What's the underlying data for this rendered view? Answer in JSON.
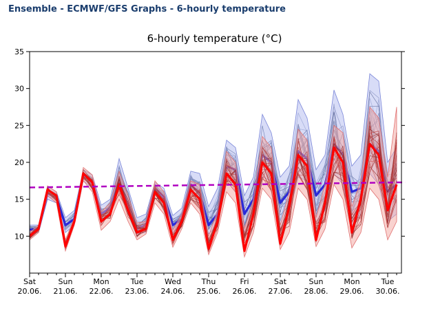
{
  "header": {
    "title": "Ensemble - ECMWF/GFS Graphs - 6-hourly temperature"
  },
  "chart_data": {
    "type": "line",
    "title": "6-hourly temperature (°C)",
    "xlabel": "",
    "ylabel": "",
    "ylim": [
      5,
      35
    ],
    "y_ticks": [
      10,
      15,
      20,
      25,
      30,
      35
    ],
    "x_tick_labels": [
      {
        "day": "Sat",
        "date": "20.06."
      },
      {
        "day": "Sun",
        "date": "21.06."
      },
      {
        "day": "Mon",
        "date": "22.06."
      },
      {
        "day": "Tue",
        "date": "23.06."
      },
      {
        "day": "Wed",
        "date": "24.06."
      },
      {
        "day": "Thu",
        "date": "25.06."
      },
      {
        "day": "Fri",
        "date": "26.06."
      },
      {
        "day": "Sat",
        "date": "27.06."
      },
      {
        "day": "Sun",
        "date": "28.06."
      },
      {
        "day": "Mon",
        "date": "29.06."
      },
      {
        "day": "Tue",
        "date": "30.06."
      }
    ],
    "x_unit": "days from 20.06.",
    "series": [
      {
        "model": "GFS",
        "color": "#2a2ad8",
        "x": [
          0,
          0.25,
          0.5,
          0.75,
          1,
          1.25,
          1.5,
          1.75,
          2,
          2.25,
          2.5,
          2.75,
          3,
          3.25,
          3.5,
          3.75,
          4,
          4.25,
          4.5,
          4.75,
          5,
          5.25,
          5.5,
          5.75,
          6,
          6.25,
          6.5,
          6.75,
          7,
          7.25,
          7.5,
          7.75,
          8,
          8.25,
          8.5,
          8.75,
          9,
          9.25,
          9.5,
          9.75,
          10,
          10.25
        ],
        "values": [
          10.9,
          10.9,
          15.8,
          15.2,
          11.5,
          12.3,
          18.3,
          17.3,
          13.0,
          13.8,
          17.5,
          14.2,
          11.0,
          11.5,
          16.5,
          15.3,
          11.5,
          12.3,
          17.0,
          15.8,
          11.5,
          13.0,
          19.5,
          19.0,
          13.0,
          15.0,
          21.0,
          20.0,
          14.5,
          16.0,
          21.5,
          20.5,
          15.5,
          17.0,
          22.5,
          21.0,
          16.0,
          16.5,
          22.5,
          21.5,
          16.0,
          17.0
        ],
        "min": [
          10.5,
          10.5,
          15.0,
          14.5,
          10.5,
          11.5,
          17.5,
          16.5,
          12.0,
          12.8,
          16.5,
          13.0,
          10.3,
          10.5,
          15.8,
          14.5,
          10.5,
          11.5,
          16.0,
          14.5,
          10.3,
          11.5,
          17.5,
          17.0,
          10.5,
          12.5,
          18.0,
          17.5,
          11.0,
          13.0,
          18.0,
          17.5,
          11.5,
          13.5,
          18.5,
          17.0,
          11.5,
          13.0,
          18.5,
          17.0,
          12.0,
          13.0
        ],
        "max": [
          11.5,
          11.5,
          16.8,
          16.0,
          12.5,
          13.5,
          19.0,
          18.3,
          14.2,
          15.0,
          20.5,
          16.5,
          12.5,
          13.0,
          17.3,
          16.5,
          12.8,
          13.8,
          18.8,
          18.5,
          14.0,
          16.5,
          23.0,
          22.0,
          15.5,
          18.0,
          26.5,
          24.0,
          18.0,
          19.5,
          28.5,
          26.0,
          19.0,
          21.0,
          29.8,
          26.5,
          19.5,
          21.0,
          32.0,
          31.0,
          20.0,
          22.0
        ]
      },
      {
        "model": "ECMWF",
        "color": "#ff0000",
        "x": [
          0,
          0.25,
          0.5,
          0.75,
          1,
          1.25,
          1.5,
          1.75,
          2,
          2.25,
          2.5,
          2.75,
          3,
          3.25,
          3.5,
          3.75,
          4,
          4.25,
          4.5,
          4.75,
          5,
          5.25,
          5.5,
          5.75,
          6,
          6.25,
          6.5,
          6.75,
          7,
          7.25,
          7.5,
          7.75,
          8,
          8.25,
          8.5,
          8.75,
          9,
          9.25,
          9.5,
          9.75,
          10,
          10.25
        ],
        "values": [
          10.0,
          11.0,
          16.3,
          15.5,
          8.6,
          12.0,
          18.5,
          17.3,
          12.0,
          13.0,
          17.0,
          13.5,
          10.5,
          11.0,
          16.0,
          14.5,
          9.5,
          12.0,
          16.3,
          15.0,
          8.3,
          12.0,
          18.5,
          17.0,
          8.0,
          13.0,
          20.0,
          18.5,
          9.0,
          14.0,
          21.0,
          19.5,
          9.5,
          14.5,
          22.0,
          20.0,
          10.5,
          15.0,
          22.5,
          21.0,
          13.5,
          17.0
        ],
        "min": [
          9.5,
          10.5,
          15.5,
          14.5,
          8.0,
          11.5,
          17.5,
          16.0,
          10.8,
          12.0,
          15.0,
          12.0,
          9.5,
          10.3,
          14.5,
          13.0,
          8.5,
          11.0,
          14.5,
          13.0,
          7.5,
          10.5,
          16.0,
          14.5,
          7.2,
          10.5,
          16.5,
          15.0,
          8.2,
          10.5,
          16.5,
          15.0,
          8.6,
          11.0,
          17.0,
          15.0,
          8.4,
          10.5,
          16.5,
          15.0,
          9.5,
          12.0
        ],
        "max": [
          10.5,
          11.5,
          16.8,
          16.0,
          9.5,
          12.5,
          19.3,
          18.3,
          13.3,
          14.5,
          18.8,
          15.5,
          11.8,
          12.0,
          17.5,
          16.0,
          10.8,
          13.0,
          17.5,
          17.0,
          10.0,
          13.5,
          21.5,
          20.0,
          11.0,
          15.0,
          23.5,
          22.0,
          11.5,
          16.0,
          24.5,
          23.0,
          12.5,
          17.0,
          25.0,
          24.0,
          14.0,
          17.5,
          27.5,
          26.0,
          18.0,
          27.5
        ]
      },
      {
        "name": "",
        "style": "dashed",
        "color": "#b000c0",
        "x": [
          0,
          10.5
        ],
        "values": [
          16.6,
          17.3
        ]
      }
    ],
    "grid": false
  }
}
